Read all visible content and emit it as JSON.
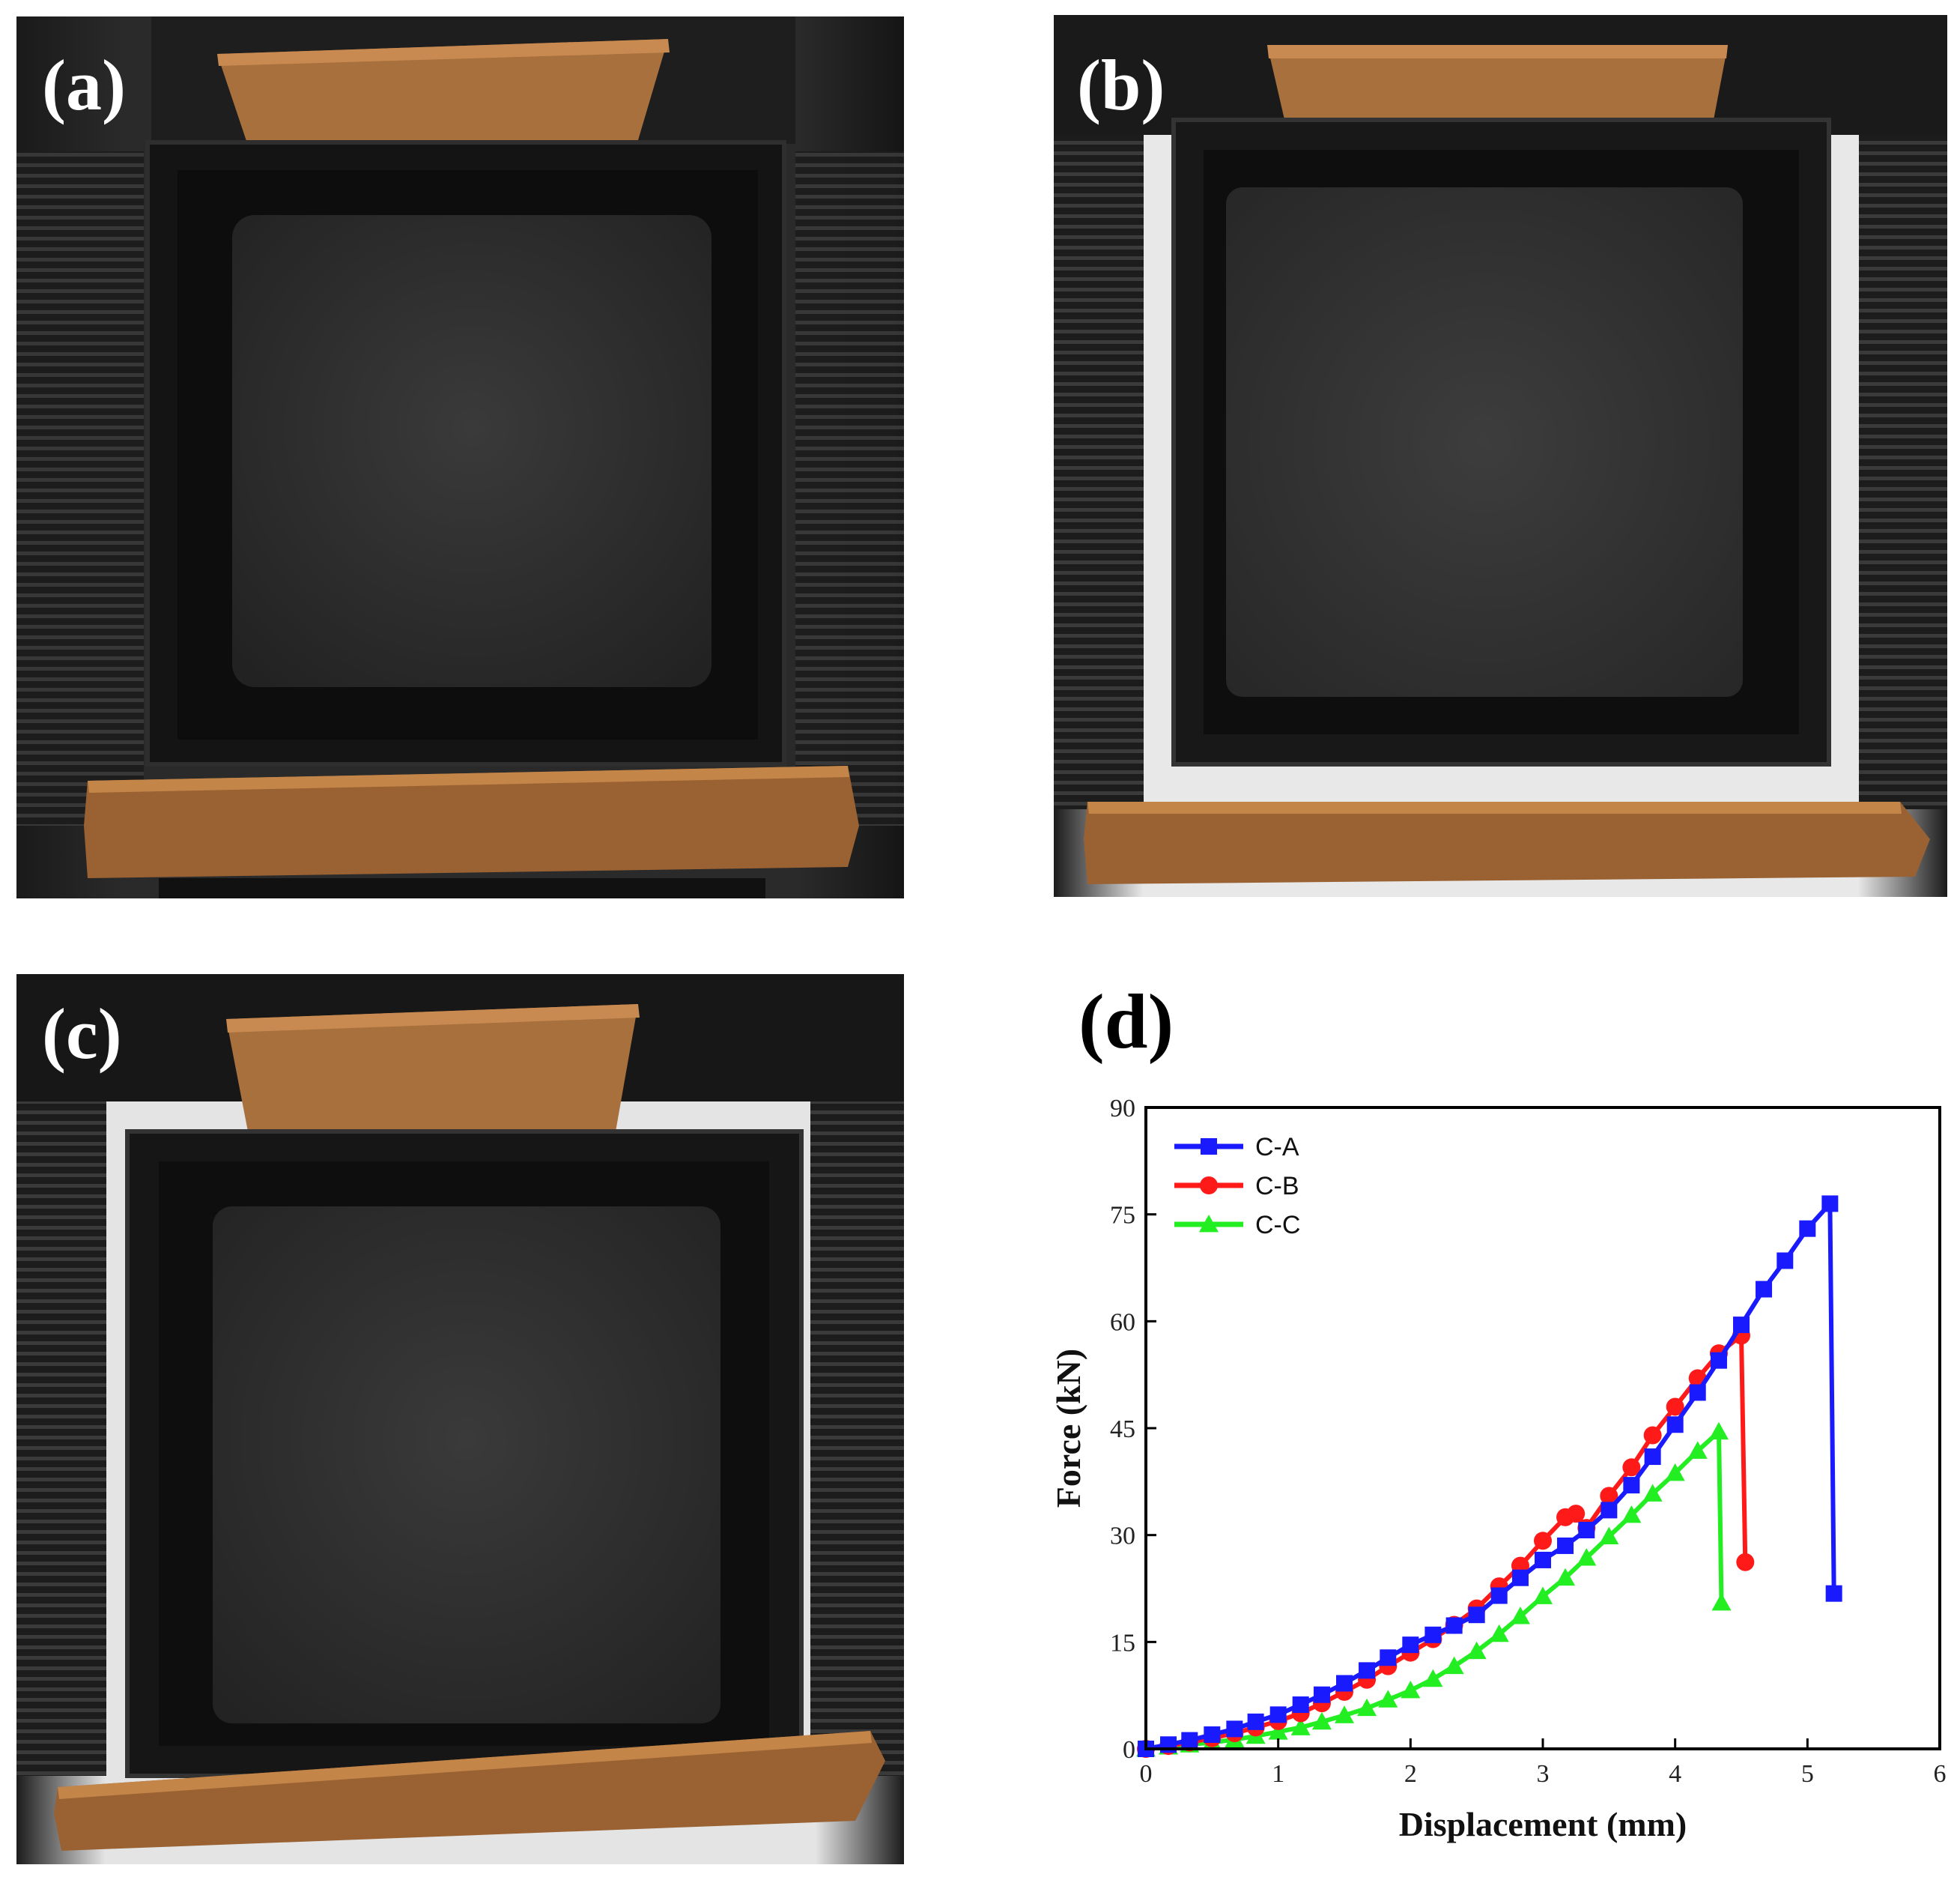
{
  "panels": {
    "a": {
      "label": "(a)"
    },
    "b": {
      "label": "(b)"
    },
    "c": {
      "label": "(c)"
    },
    "d": {
      "label": "(d)"
    }
  },
  "chart_data": {
    "type": "line",
    "title": "",
    "xlabel": "Displacement (mm)",
    "ylabel": "Force (kN)",
    "xlim": [
      0,
      6
    ],
    "ylim": [
      0,
      90
    ],
    "xticks": [
      0,
      1,
      2,
      3,
      4,
      5,
      6
    ],
    "yticks": [
      0,
      15,
      30,
      45,
      60,
      75,
      90
    ],
    "grid": false,
    "legend_position": "top-left",
    "series": [
      {
        "name": "C-A",
        "color": "#1a1aff",
        "marker": "square",
        "x": [
          0,
          0.17,
          0.33,
          0.5,
          0.67,
          0.83,
          1.0,
          1.17,
          1.33,
          1.5,
          1.67,
          1.83,
          2.0,
          2.17,
          2.33,
          2.5,
          2.67,
          2.83,
          3.0,
          3.17,
          3.33,
          3.5,
          3.67,
          3.83,
          4.0,
          4.17,
          4.33,
          4.5,
          4.67,
          4.83,
          5.0,
          5.17,
          5.2
        ],
        "y": [
          0,
          0.6,
          1.2,
          2.0,
          2.8,
          3.8,
          4.8,
          6.2,
          7.6,
          9.2,
          11.0,
          12.8,
          14.6,
          16.0,
          17.3,
          18.8,
          21.5,
          24.0,
          26.5,
          28.5,
          30.7,
          33.5,
          37.0,
          41.0,
          45.5,
          50.0,
          54.5,
          59.5,
          64.5,
          68.5,
          73.0,
          76.5,
          21.8
        ]
      },
      {
        "name": "C-B",
        "color": "#ff1a1a",
        "marker": "circle",
        "x": [
          0,
          0.17,
          0.33,
          0.5,
          0.67,
          0.83,
          1.0,
          1.17,
          1.33,
          1.5,
          1.67,
          1.83,
          2.0,
          2.17,
          2.33,
          2.5,
          2.67,
          2.83,
          3.0,
          3.17,
          3.25,
          3.33,
          3.5,
          3.67,
          3.83,
          4.0,
          4.17,
          4.33,
          4.5,
          4.53
        ],
        "y": [
          0,
          0.4,
          0.9,
          1.5,
          2.2,
          3.0,
          3.9,
          5.0,
          6.4,
          8.0,
          9.7,
          11.6,
          13.5,
          15.4,
          17.4,
          19.7,
          22.8,
          25.7,
          29.2,
          32.5,
          33.0,
          31.0,
          35.5,
          39.5,
          44.0,
          48.0,
          52.0,
          55.5,
          58.0,
          26.2
        ]
      },
      {
        "name": "C-C",
        "color": "#22ee22",
        "marker": "triangle",
        "x": [
          0,
          0.17,
          0.33,
          0.5,
          0.67,
          0.83,
          1.0,
          1.17,
          1.33,
          1.5,
          1.67,
          1.83,
          2.0,
          2.17,
          2.33,
          2.5,
          2.67,
          2.83,
          3.0,
          3.17,
          3.33,
          3.5,
          3.67,
          3.83,
          4.0,
          4.17,
          4.33,
          4.35
        ],
        "y": [
          0,
          0.3,
          0.6,
          0.9,
          1.3,
          1.8,
          2.4,
          3.0,
          3.8,
          4.7,
          5.7,
          6.9,
          8.2,
          9.8,
          11.6,
          13.7,
          16.1,
          18.6,
          21.4,
          24.0,
          26.8,
          29.8,
          32.8,
          35.8,
          38.7,
          41.8,
          44.5,
          20.5
        ]
      }
    ]
  },
  "colors": {
    "frame_black": "#141414",
    "mesh_dark": "#2c2c2c",
    "copper": "#9a6233",
    "cardboard": "#a8703d",
    "backdrop": "#e6e6e6"
  }
}
